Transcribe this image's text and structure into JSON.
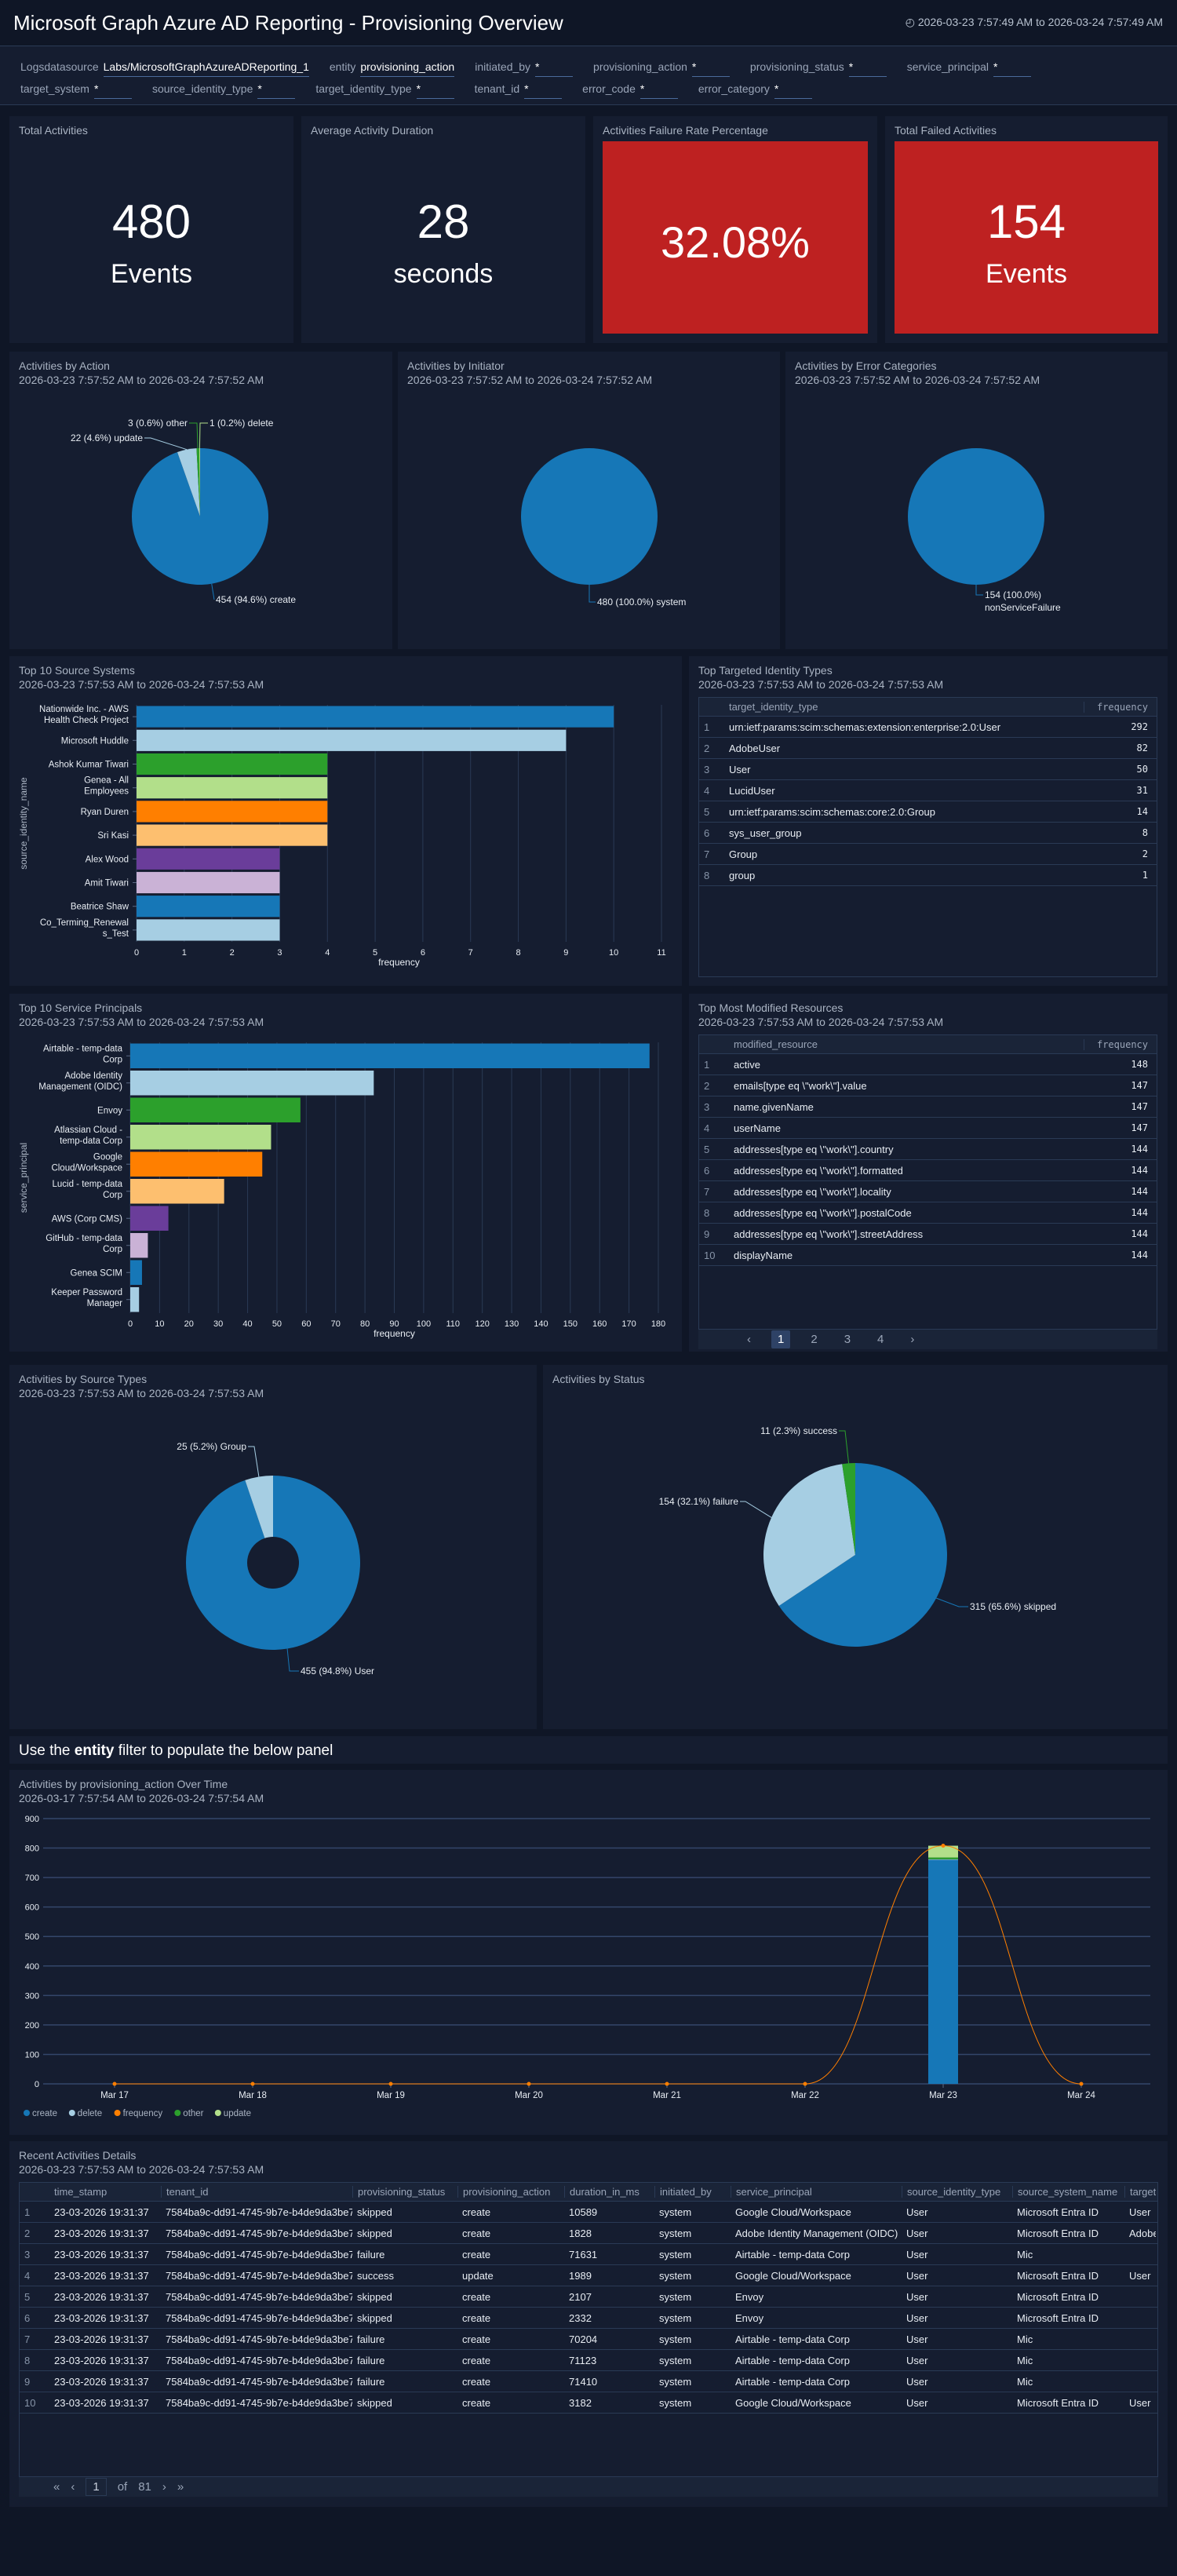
{
  "header": {
    "title": "Microsoft Graph Azure AD Reporting - Provisioning Overview",
    "time_range": "2026-03-23 7:57:49 AM to 2026-03-24 7:57:49 AM",
    "clock_icon": "clock-icon"
  },
  "filters": [
    {
      "label": "Logsdatasource",
      "value": "Labs/MicrosoftGraphAzureADReporting_1"
    },
    {
      "label": "entity",
      "value": "provisioning_action"
    },
    {
      "label": "initiated_by",
      "value": "*"
    },
    {
      "label": "provisioning_action",
      "value": "*"
    },
    {
      "label": "provisioning_status",
      "value": "*"
    },
    {
      "label": "service_principal",
      "value": "*"
    },
    {
      "label": "target_system",
      "value": "*"
    },
    {
      "label": "source_identity_type",
      "value": "*"
    },
    {
      "label": "target_identity_type",
      "value": "*"
    },
    {
      "label": "tenant_id",
      "value": "*"
    },
    {
      "label": "error_code",
      "value": "*"
    },
    {
      "label": "error_category",
      "value": "*"
    }
  ],
  "kpis": [
    {
      "title": "Total Activities",
      "value": "480",
      "unit": "Events"
    },
    {
      "title": "Average Activity Duration",
      "value": "28",
      "unit": "seconds"
    },
    {
      "title": "Activities Failure Rate Percentage",
      "value": "32.08%",
      "unit": ""
    },
    {
      "title": "Total Failed Activities",
      "value": "154",
      "unit": "Events"
    }
  ],
  "colors": {
    "blue": "#1677b7",
    "lightblue": "#a6cee3",
    "green": "#2ca02c",
    "lightgreen": "#b2df8a",
    "orange": "#ff7f00",
    "peach": "#fdbf6f",
    "purple": "#6a3d9a",
    "lavender": "#cab2d6",
    "red": "#be2121"
  },
  "tables": {
    "target_identity": {
      "title": "Top Targeted Identity Types",
      "subtitle": "2026-03-23 7:57:53 AM to 2026-03-24 7:57:53 AM",
      "columns": [
        "target_identity_type",
        "frequency"
      ],
      "rows": [
        [
          "urn:ietf:params:scim:schemas:extension:enterprise:2.0:User",
          "292"
        ],
        [
          "AdobeUser",
          "82"
        ],
        [
          "User",
          "50"
        ],
        [
          "LucidUser",
          "31"
        ],
        [
          "urn:ietf:params:scim:schemas:core:2.0:Group",
          "14"
        ],
        [
          "sys_user_group",
          "8"
        ],
        [
          "Group",
          "2"
        ],
        [
          "group",
          "1"
        ]
      ]
    },
    "modified": {
      "title": "Top Most Modified Resources",
      "subtitle": "2026-03-23 7:57:53 AM to 2026-03-24 7:57:53 AM",
      "columns": [
        "modified_resource",
        "frequency"
      ],
      "rows": [
        [
          "active",
          "148"
        ],
        [
          "emails[type eq \\\"work\\\"].value",
          "147"
        ],
        [
          "name.givenName",
          "147"
        ],
        [
          "userName",
          "147"
        ],
        [
          "addresses[type eq \\\"work\\\"].country",
          "144"
        ],
        [
          "addresses[type eq \\\"work\\\"].formatted",
          "144"
        ],
        [
          "addresses[type eq \\\"work\\\"].locality",
          "144"
        ],
        [
          "addresses[type eq \\\"work\\\"].postalCode",
          "144"
        ],
        [
          "addresses[type eq \\\"work\\\"].streetAddress",
          "144"
        ],
        [
          "displayName",
          "144"
        ]
      ],
      "pages": [
        "1",
        "2",
        "3",
        "4"
      ]
    },
    "recent": {
      "title": "Recent Activities Details",
      "subtitle": "2026-03-23 7:57:53 AM to 2026-03-24 7:57:53 AM",
      "columns": [
        "time_stamp",
        "tenant_id",
        "provisioning_status",
        "provisioning_action",
        "duration_in_ms",
        "initiated_by",
        "service_principal",
        "source_identity_type",
        "source_system_name",
        "target_"
      ],
      "rows": [
        [
          "23-03-2026 19:31:37",
          "7584ba9c-dd91-4745-9b7e-b4de9da3be7b",
          "skipped",
          "create",
          "10589",
          "system",
          "Google Cloud/Workspace",
          "User",
          "Microsoft Entra ID",
          "User"
        ],
        [
          "23-03-2026 19:31:37",
          "7584ba9c-dd91-4745-9b7e-b4de9da3be7b",
          "skipped",
          "create",
          "1828",
          "system",
          "Adobe Identity Management (OIDC)",
          "User",
          "Microsoft Entra ID",
          "Adobe"
        ],
        [
          "23-03-2026 19:31:37",
          "7584ba9c-dd91-4745-9b7e-b4de9da3be7b",
          "failure",
          "create",
          "71631",
          "system",
          "Airtable - temp-data Corp",
          "User",
          "Mic",
          ""
        ],
        [
          "23-03-2026 19:31:37",
          "7584ba9c-dd91-4745-9b7e-b4de9da3be7b",
          "success",
          "update",
          "1989",
          "system",
          "Google Cloud/Workspace",
          "User",
          "Microsoft Entra ID",
          "User"
        ],
        [
          "23-03-2026 19:31:37",
          "7584ba9c-dd91-4745-9b7e-b4de9da3be7b",
          "skipped",
          "create",
          "2107",
          "system",
          "Envoy",
          "User",
          "Microsoft Entra ID",
          ""
        ],
        [
          "23-03-2026 19:31:37",
          "7584ba9c-dd91-4745-9b7e-b4de9da3be7b",
          "skipped",
          "create",
          "2332",
          "system",
          "Envoy",
          "User",
          "Microsoft Entra ID",
          ""
        ],
        [
          "23-03-2026 19:31:37",
          "7584ba9c-dd91-4745-9b7e-b4de9da3be7b",
          "failure",
          "create",
          "70204",
          "system",
          "Airtable - temp-data Corp",
          "User",
          "Mic",
          ""
        ],
        [
          "23-03-2026 19:31:37",
          "7584ba9c-dd91-4745-9b7e-b4de9da3be7b",
          "failure",
          "create",
          "71123",
          "system",
          "Airtable - temp-data Corp",
          "User",
          "Mic",
          ""
        ],
        [
          "23-03-2026 19:31:37",
          "7584ba9c-dd91-4745-9b7e-b4de9da3be7b",
          "failure",
          "create",
          "71410",
          "system",
          "Airtable - temp-data Corp",
          "User",
          "Mic",
          ""
        ],
        [
          "23-03-2026 19:31:37",
          "7584ba9c-dd91-4745-9b7e-b4de9da3be7b",
          "skipped",
          "create",
          "3182",
          "system",
          "Google Cloud/Workspace",
          "User",
          "Microsoft Entra ID",
          "User"
        ]
      ],
      "pager": {
        "current": "1",
        "of": "of",
        "total": "81"
      }
    }
  },
  "note": {
    "pre": "Use the ",
    "bold": "entity",
    "post": " filter to populate the below panel"
  },
  "chart_data": [
    {
      "id": "action",
      "type": "pie",
      "title": "Activities by Action",
      "subtitle": "2026-03-23 7:57:52 AM to 2026-03-24 7:57:52 AM",
      "slices": [
        {
          "name": "create",
          "value": 454,
          "label": "454 (94.6%) create",
          "color": "#1677b7"
        },
        {
          "name": "update",
          "value": 22,
          "label": "22 (4.6%) update",
          "color": "#a6cee3"
        },
        {
          "name": "other",
          "value": 3,
          "label": "3 (0.6%) other",
          "color": "#2ca02c"
        },
        {
          "name": "delete",
          "value": 1,
          "label": "1 (0.2%) delete",
          "color": "#b2df8a"
        }
      ]
    },
    {
      "id": "initiator",
      "type": "pie",
      "title": "Activities by Initiator",
      "subtitle": "2026-03-23 7:57:52 AM to 2026-03-24 7:57:52 AM",
      "slices": [
        {
          "name": "system",
          "value": 480,
          "label": "480 (100.0%) system",
          "color": "#1677b7"
        }
      ]
    },
    {
      "id": "error",
      "type": "pie",
      "title": "Activities by Error Categories",
      "subtitle": "2026-03-23 7:57:52 AM to 2026-03-24 7:57:52 AM",
      "slices": [
        {
          "name": "nonServiceFailure",
          "value": 154,
          "label": "154 (100.0%)",
          "label2": "nonServiceFailure",
          "color": "#1677b7"
        }
      ]
    },
    {
      "id": "sources",
      "type": "bar",
      "orientation": "horizontal",
      "title": "Top 10 Source Systems",
      "subtitle": "2026-03-23 7:57:53 AM to 2026-03-24 7:57:53 AM",
      "xlabel": "frequency",
      "ylabel": "source_identity_name",
      "xlim": [
        0,
        11
      ],
      "xticks": [
        0,
        1,
        2,
        3,
        4,
        5,
        6,
        7,
        8,
        9,
        10,
        11
      ],
      "categories": [
        [
          "Nationwide Inc. - AWS",
          "Health Check Project"
        ],
        [
          "Microsoft Huddle"
        ],
        [
          "Ashok Kumar Tiwari"
        ],
        [
          "Genea - All",
          "Employees"
        ],
        [
          "Ryan Duren"
        ],
        [
          "Sri Kasi"
        ],
        [
          "Alex Wood"
        ],
        [
          "Amit Tiwari"
        ],
        [
          "Beatrice Shaw"
        ],
        [
          "Co_Terming_Renewal",
          "s_Test"
        ]
      ],
      "values": [
        10,
        9,
        4,
        4,
        4,
        4,
        3,
        3,
        3,
        3
      ]
    },
    {
      "id": "principals",
      "type": "bar",
      "orientation": "horizontal",
      "title": "Top 10 Service Principals",
      "subtitle": "2026-03-23 7:57:53 AM to 2026-03-24 7:57:53 AM",
      "xlabel": "frequency",
      "ylabel": "service_principal",
      "xlim": [
        0,
        180
      ],
      "xticks": [
        0,
        10,
        20,
        30,
        40,
        50,
        60,
        70,
        80,
        90,
        100,
        110,
        120,
        130,
        140,
        150,
        160,
        170,
        180
      ],
      "categories": [
        [
          "Airtable - temp-data",
          "Corp"
        ],
        [
          "Adobe Identity",
          "Management (OIDC)"
        ],
        [
          "Envoy"
        ],
        [
          "Atlassian Cloud -",
          "temp-data Corp"
        ],
        [
          "Google",
          "Cloud/Workspace"
        ],
        [
          "Lucid - temp-data",
          "Corp"
        ],
        [
          "AWS (Corp CMS)"
        ],
        [
          "GitHub - temp-data",
          "Corp"
        ],
        [
          "Genea SCIM"
        ],
        [
          "Keeper Password",
          "Manager"
        ]
      ],
      "values": [
        177,
        83,
        58,
        48,
        45,
        32,
        13,
        6,
        4,
        3
      ]
    },
    {
      "id": "sourcetypes",
      "type": "pie",
      "donut": true,
      "title": "Activities by Source Types",
      "subtitle": "2026-03-23 7:57:53 AM to 2026-03-24 7:57:53 AM",
      "slices": [
        {
          "name": "User",
          "value": 455,
          "label": "455 (94.8%) User",
          "color": "#1677b7"
        },
        {
          "name": "Group",
          "value": 25,
          "label": "25 (5.2%) Group",
          "color": "#a6cee3"
        }
      ]
    },
    {
      "id": "status",
      "type": "pie",
      "title": "Activities by Status",
      "slices": [
        {
          "name": "skipped",
          "value": 315,
          "label": "315 (65.6%) skipped",
          "color": "#1677b7"
        },
        {
          "name": "failure",
          "value": 154,
          "label": "154 (32.1%) failure",
          "color": "#a6cee3"
        },
        {
          "name": "success",
          "value": 11,
          "label": "11 (2.3%) success",
          "color": "#2ca02c"
        }
      ]
    },
    {
      "id": "overtime",
      "type": "bar",
      "stacked": true,
      "title": "Activities by provisioning_action Over Time",
      "subtitle": "2026-03-17 7:57:54 AM to 2026-03-24 7:57:54 AM",
      "ylim": [
        0,
        900
      ],
      "yticks": [
        0,
        100,
        200,
        300,
        400,
        500,
        600,
        700,
        800,
        900
      ],
      "categories": [
        "Mar 17",
        "Mar 18",
        "Mar 19",
        "Mar 20",
        "Mar 21",
        "Mar 22",
        "Mar 23",
        "Mar 24"
      ],
      "series": [
        {
          "name": "create",
          "color": "#1677b7",
          "values": [
            0,
            0,
            0,
            0,
            0,
            0,
            760,
            0
          ]
        },
        {
          "name": "delete",
          "color": "#a6cee3",
          "values": [
            0,
            0,
            0,
            0,
            0,
            0,
            2,
            0
          ]
        },
        {
          "name": "other",
          "color": "#2ca02c",
          "values": [
            0,
            0,
            0,
            0,
            0,
            0,
            6,
            0
          ]
        },
        {
          "name": "update",
          "color": "#b2df8a",
          "values": [
            0,
            0,
            0,
            0,
            0,
            0,
            40,
            0
          ]
        }
      ],
      "line": {
        "name": "frequency",
        "color": "#ff7f00",
        "values": [
          0,
          0,
          0,
          0,
          0,
          0,
          808,
          0
        ]
      },
      "legend": [
        {
          "name": "create",
          "color": "#1677b7"
        },
        {
          "name": "delete",
          "color": "#a6cee3"
        },
        {
          "name": "frequency",
          "color": "#ff7f00"
        },
        {
          "name": "other",
          "color": "#2ca02c"
        },
        {
          "name": "update",
          "color": "#b2df8a"
        }
      ],
      "legend_position": "bottom-left"
    }
  ]
}
